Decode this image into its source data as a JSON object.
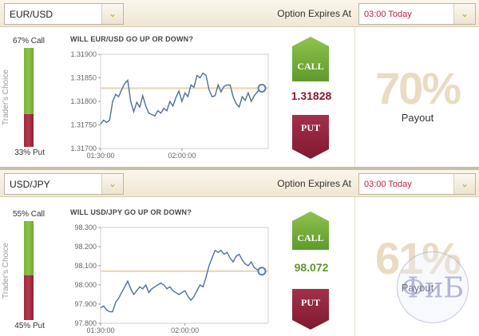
{
  "panels": [
    {
      "pair": "EUR/USD",
      "expires_label": "Option Expires At",
      "expires_value": "03:00 Today",
      "traders_choice_label": "Trader's Choice",
      "call_pct": "67% Call",
      "put_pct": "33% Put",
      "call_fraction": 0.67,
      "question": "WILL EUR/USD GO UP OR DOWN?",
      "price": "1.31828",
      "price_color": "#8b1a35",
      "call_label": "CALL",
      "put_label": "PUT",
      "payout_pct": "70%",
      "payout_label": "Payout"
    },
    {
      "pair": "USD/JPY",
      "expires_label": "Option Expires At",
      "expires_value": "03:00 Today",
      "traders_choice_label": "Trader's Choice",
      "call_pct": "55% Call",
      "put_pct": "45% Put",
      "call_fraction": 0.55,
      "question": "WILL USD/JPY GO UP OR DOWN?",
      "price": "98.072",
      "price_color": "#5a9a2a",
      "call_label": "CALL",
      "put_label": "PUT",
      "payout_pct": "61%",
      "payout_label": "Payout"
    }
  ],
  "chart_data": [
    {
      "type": "line",
      "title": "WILL EUR/USD GO UP OR DOWN?",
      "yticks": [
        "1.31900",
        "1.31850",
        "1.31800",
        "1.31750",
        "1.31700"
      ],
      "ylim": [
        1.317,
        1.319
      ],
      "xticks": [
        "01:30:00",
        "02:00:00"
      ],
      "xtick_index": [
        0,
        27
      ],
      "strike": 1.31828,
      "series": [
        {
          "values": [
            1.31752,
            1.3176,
            1.31755,
            1.3176,
            1.318,
            1.31815,
            1.3181,
            1.31825,
            1.31838,
            1.31845,
            1.318,
            1.31778,
            1.31798,
            1.31788,
            1.31812,
            1.3179,
            1.31775,
            1.31772,
            1.31769,
            1.3178,
            1.31775,
            1.31785,
            1.3178,
            1.318,
            1.3179,
            1.31808,
            1.31822,
            1.318,
            1.31818,
            1.3181,
            1.31835,
            1.3183,
            1.31855,
            1.3185,
            1.3186,
            1.31855,
            1.31825,
            1.3181,
            1.31812,
            1.31835,
            1.3182,
            1.31832,
            1.31835,
            1.31835,
            1.3181,
            1.31795,
            1.31788,
            1.3181,
            1.31802,
            1.31818,
            1.318,
            1.31812,
            1.3182,
            1.31828
          ]
        }
      ]
    },
    {
      "type": "line",
      "title": "WILL USD/JPY GO UP OR DOWN?",
      "yticks": [
        "98.300",
        "98.200",
        "98.100",
        "98.000",
        "97.900",
        "97.800"
      ],
      "ylim": [
        97.8,
        98.3
      ],
      "xticks": [
        "01:30:00",
        "02:00:00"
      ],
      "xtick_index": [
        0,
        28
      ],
      "strike": 98.072,
      "series": [
        {
          "values": [
            97.88,
            97.89,
            97.87,
            97.86,
            97.86,
            97.91,
            97.93,
            97.96,
            97.99,
            98.02,
            97.98,
            97.95,
            97.97,
            97.99,
            97.98,
            98.0,
            97.96,
            97.98,
            97.99,
            98.0,
            98.01,
            98.0,
            97.98,
            97.99,
            97.97,
            97.96,
            97.95,
            97.96,
            97.97,
            97.94,
            97.92,
            97.94,
            97.97,
            98.0,
            97.99,
            98.04,
            98.1,
            98.14,
            98.18,
            98.17,
            98.18,
            98.16,
            98.17,
            98.14,
            98.12,
            98.15,
            98.16,
            98.13,
            98.11,
            98.1,
            98.12,
            98.09,
            98.08,
            98.072
          ]
        }
      ]
    }
  ],
  "colors": {
    "call_green": "#6ea534",
    "put_red": "#8e1f36",
    "line": "#4f6f9a",
    "strike_line": "#e6d4ae",
    "accent_gold": "#d19a2b"
  },
  "watermark": {
    "text": "ФиБ"
  }
}
